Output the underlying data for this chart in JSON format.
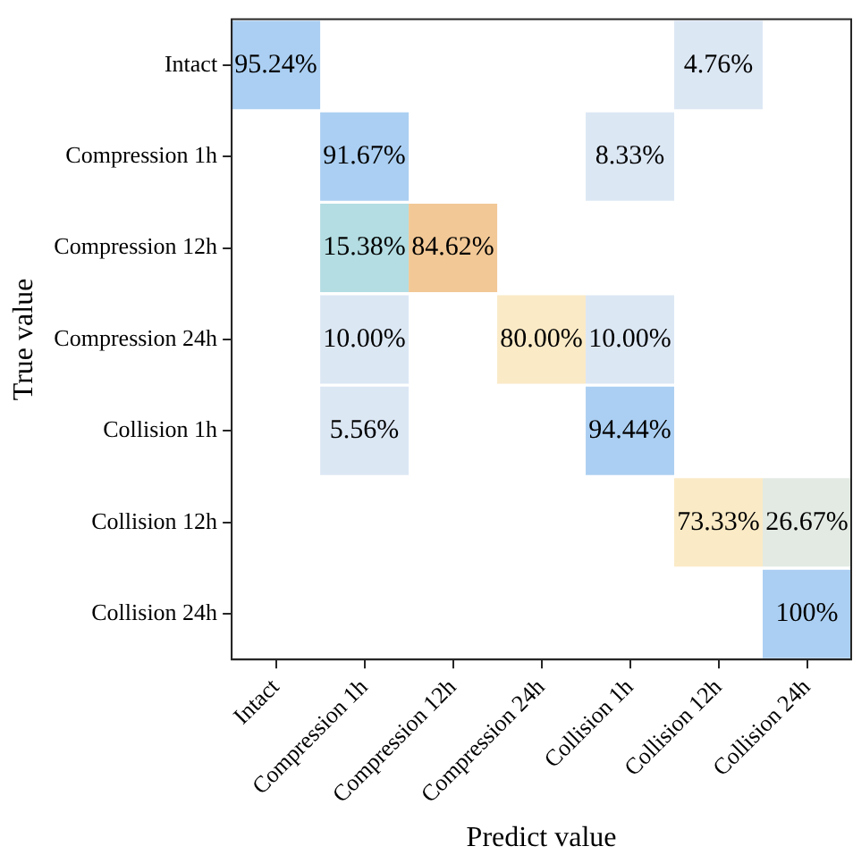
{
  "chart_data": {
    "type": "heatmap",
    "xlabel": "Predict value",
    "ylabel": "True value",
    "categories": [
      "Intact",
      "Compression 1h",
      "Compression 12h",
      "Compression 24h",
      "Collision 1h",
      "Collision 12h",
      "Collision 24h"
    ],
    "y_categories": [
      "Intact",
      "Compression 1h",
      "Compression 12h",
      "Compression 24h",
      "Collision 1h",
      "Collision 12h",
      "Collision 24h"
    ],
    "cells": [
      [
        95.24,
        null,
        null,
        null,
        null,
        4.76,
        null
      ],
      [
        null,
        91.67,
        null,
        null,
        8.33,
        null,
        null
      ],
      [
        null,
        15.38,
        84.62,
        null,
        null,
        null,
        null
      ],
      [
        null,
        10.0,
        null,
        80.0,
        10.0,
        null,
        null
      ],
      [
        null,
        5.56,
        null,
        null,
        94.44,
        null,
        null
      ],
      [
        null,
        null,
        null,
        null,
        null,
        73.33,
        26.67
      ],
      [
        null,
        null,
        null,
        null,
        null,
        null,
        100
      ]
    ],
    "cell_labels": [
      [
        "95.24%",
        null,
        null,
        null,
        null,
        "4.76%",
        null
      ],
      [
        null,
        "91.67%",
        null,
        null,
        "8.33%",
        null,
        null
      ],
      [
        null,
        "15.38%",
        "84.62%",
        null,
        null,
        null,
        null
      ],
      [
        null,
        "10.00%",
        null,
        "80.00%",
        "10.00%",
        null,
        null
      ],
      [
        null,
        "5.56%",
        null,
        null,
        "94.44%",
        null,
        null
      ],
      [
        null,
        null,
        null,
        null,
        null,
        "73.33%",
        "26.67%"
      ],
      [
        null,
        null,
        null,
        null,
        null,
        null,
        "100%"
      ]
    ],
    "colors": [
      [
        "#abcff2",
        null,
        null,
        null,
        null,
        "#dce7f4",
        null
      ],
      [
        null,
        "#abcff2",
        null,
        null,
        "#dce7f4",
        null,
        null
      ],
      [
        null,
        "#b3dde2",
        "#f2c896",
        null,
        null,
        null,
        null
      ],
      [
        null,
        "#dce7f4",
        null,
        "#faeac6",
        "#dce7f4",
        null,
        null
      ],
      [
        null,
        "#dce7f4",
        null,
        null,
        "#abcff2",
        null,
        null
      ],
      [
        null,
        null,
        null,
        null,
        null,
        "#faeac6",
        "#e3eae3"
      ],
      [
        null,
        null,
        null,
        null,
        null,
        null,
        "#abcff2"
      ]
    ]
  }
}
